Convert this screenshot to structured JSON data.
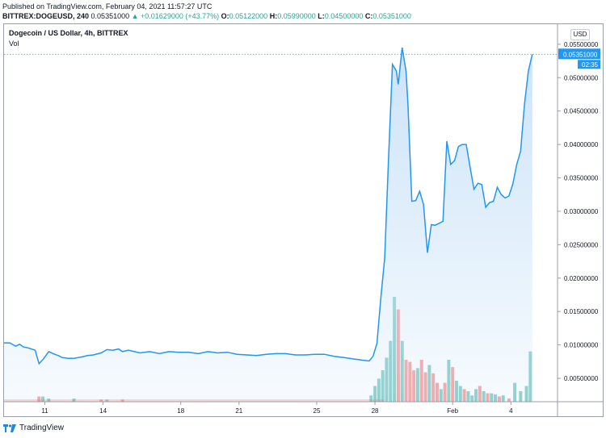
{
  "header": {
    "published": "Published on TradingView.com, February 04, 2021 11:57:27 UTC",
    "symbol": "BITTREX:DOGEUSD, 240",
    "last": "0.05351000",
    "change": "▲ +0.01629000 (+43.77%)",
    "open_label": "O:",
    "open": "0.05122000",
    "high_label": "H:",
    "high": "0.05990000",
    "low_label": "L:",
    "low": "0.04500000",
    "close_label": "C:",
    "close": "0.05351000"
  },
  "legend": {
    "title": "Dogecoin / US Dollar, 4h, BITTREX",
    "volume": "Vol"
  },
  "currency_button": "USD",
  "brand": "TradingView",
  "colors": {
    "line": "#2196f3",
    "fill": "#c9e2f8",
    "vol_up": "#26a69a",
    "vol_down": "#ef5350",
    "label_bg": "#2196f3"
  },
  "chart_data": {
    "type": "area",
    "price_label": "0.05351000",
    "countdown": "02:35",
    "y_ticks": [
      "0.05500000",
      "0.05000000",
      "0.04500000",
      "0.04000000",
      "0.03500000",
      "0.03000000",
      "0.02500000",
      "0.02000000",
      "0.01500000",
      "0.01000000",
      "0.00500000"
    ],
    "y_tick_values": [
      0.055,
      0.05,
      0.045,
      0.04,
      0.035,
      0.03,
      0.025,
      0.02,
      0.015,
      0.01,
      0.005
    ],
    "ylim": [
      0.0015,
      0.058
    ],
    "x_ticks": [
      {
        "label": "11",
        "x": 2.1
      },
      {
        "label": "14",
        "x": 5.1
      },
      {
        "label": "18",
        "x": 9.1
      },
      {
        "label": "21",
        "x": 12.1
      },
      {
        "label": "25",
        "x": 16.1
      },
      {
        "label": "28",
        "x": 19.1
      },
      {
        "label": "Feb",
        "x": 23.1
      },
      {
        "label": "4",
        "x": 26.1
      }
    ],
    "xlim": [
      0,
      28.5
    ],
    "series": [
      {
        "x": [
          0.0,
          0.3,
          0.6,
          0.8,
          1.0,
          1.3,
          1.6,
          1.8,
          2.0,
          2.3,
          2.6,
          2.8,
          3.0,
          3.3,
          3.6,
          4.0,
          4.3,
          4.6,
          5.0,
          5.3,
          5.6,
          5.9,
          6.1,
          6.4,
          7.0,
          7.5,
          8.0,
          8.5,
          9.0,
          9.5,
          10.0,
          10.5,
          11.0,
          11.5,
          12.0,
          12.5,
          13.0,
          13.5,
          14.0,
          14.5,
          15.0,
          15.5,
          16.0,
          16.5,
          17.0,
          17.5,
          18.0,
          18.5,
          18.8,
          19.0,
          19.2,
          19.4,
          19.6,
          19.8,
          20.0,
          20.2,
          20.3,
          20.5,
          20.7,
          20.8,
          21.0,
          21.2,
          21.4,
          21.6,
          21.8,
          22.0,
          22.2,
          22.4,
          22.6,
          22.8,
          23.0,
          23.2,
          23.4,
          23.6,
          23.8,
          24.0,
          24.2,
          24.4,
          24.6,
          24.8,
          25.0,
          25.2,
          25.4,
          25.6,
          25.8,
          26.0,
          26.2,
          26.4
        ],
        "y": [
          0.0103,
          0.0103,
          0.0098,
          0.0101,
          0.0097,
          0.0095,
          0.0092,
          0.0072,
          0.0078,
          0.009,
          0.0086,
          0.0084,
          0.0081,
          0.008,
          0.008,
          0.0082,
          0.0084,
          0.0085,
          0.0088,
          0.0093,
          0.0092,
          0.0094,
          0.009,
          0.0092,
          0.0088,
          0.009,
          0.0087,
          0.009,
          0.0089,
          0.0089,
          0.0087,
          0.009,
          0.0088,
          0.0089,
          0.0086,
          0.0085,
          0.0084,
          0.0086,
          0.0087,
          0.0087,
          0.0085,
          0.0085,
          0.0086,
          0.0086,
          0.0083,
          0.0081,
          0.0079,
          0.0077,
          0.0076,
          0.0083,
          0.0102,
          0.017,
          0.023,
          0.038,
          0.052,
          0.051,
          0.049,
          0.0545,
          0.051,
          0.046,
          0.0315,
          0.0316,
          0.033,
          0.031,
          0.0238,
          0.028,
          0.0279,
          0.0282,
          0.0285,
          0.0405,
          0.037,
          0.0376,
          0.0397,
          0.04,
          0.04,
          0.0366,
          0.0333,
          0.0342,
          0.034,
          0.0306,
          0.0313,
          0.0315,
          0.0336,
          0.0325,
          0.032,
          0.0323,
          0.0341,
          0.037
        ]
      }
    ],
    "series_tail": {
      "x": [
        26.6,
        26.8,
        27.0,
        27.2
      ],
      "y": [
        0.039,
        0.046,
        0.051,
        0.0535
      ]
    },
    "volume": {
      "max": 1.0,
      "bars": [
        {
          "x": 1.8,
          "v": 0.05,
          "up": false
        },
        {
          "x": 2.0,
          "v": 0.05,
          "up": true
        },
        {
          "x": 2.3,
          "v": 0.03,
          "up": true
        },
        {
          "x": 3.6,
          "v": 0.03,
          "up": true
        },
        {
          "x": 5.0,
          "v": 0.02,
          "up": false
        },
        {
          "x": 5.3,
          "v": 0.02,
          "up": true
        },
        {
          "x": 6.1,
          "v": 0.02,
          "up": false
        },
        {
          "x": 18.9,
          "v": 0.06,
          "up": true
        },
        {
          "x": 19.1,
          "v": 0.15,
          "up": true
        },
        {
          "x": 19.3,
          "v": 0.22,
          "up": true
        },
        {
          "x": 19.5,
          "v": 0.3,
          "up": true
        },
        {
          "x": 19.7,
          "v": 0.42,
          "up": true
        },
        {
          "x": 19.9,
          "v": 0.58,
          "up": true
        },
        {
          "x": 20.1,
          "v": 1.0,
          "up": true
        },
        {
          "x": 20.3,
          "v": 0.88,
          "up": false
        },
        {
          "x": 20.5,
          "v": 0.58,
          "up": true
        },
        {
          "x": 20.7,
          "v": 0.4,
          "up": false
        },
        {
          "x": 20.9,
          "v": 0.38,
          "up": false
        },
        {
          "x": 21.1,
          "v": 0.3,
          "up": false
        },
        {
          "x": 21.3,
          "v": 0.32,
          "up": true
        },
        {
          "x": 21.5,
          "v": 0.4,
          "up": false
        },
        {
          "x": 21.7,
          "v": 0.28,
          "up": false
        },
        {
          "x": 21.9,
          "v": 0.35,
          "up": true
        },
        {
          "x": 22.1,
          "v": 0.27,
          "up": false
        },
        {
          "x": 22.3,
          "v": 0.18,
          "up": false
        },
        {
          "x": 22.5,
          "v": 0.12,
          "up": true
        },
        {
          "x": 22.7,
          "v": 0.18,
          "up": false
        },
        {
          "x": 22.9,
          "v": 0.4,
          "up": true
        },
        {
          "x": 23.1,
          "v": 0.33,
          "up": false
        },
        {
          "x": 23.3,
          "v": 0.2,
          "up": true
        },
        {
          "x": 23.5,
          "v": 0.15,
          "up": true
        },
        {
          "x": 23.7,
          "v": 0.12,
          "up": false
        },
        {
          "x": 23.9,
          "v": 0.1,
          "up": true
        },
        {
          "x": 24.1,
          "v": 0.06,
          "up": true
        },
        {
          "x": 24.3,
          "v": 0.12,
          "up": true
        },
        {
          "x": 24.5,
          "v": 0.15,
          "up": false
        },
        {
          "x": 24.7,
          "v": 0.1,
          "up": true
        },
        {
          "x": 24.9,
          "v": 0.08,
          "up": false
        },
        {
          "x": 25.1,
          "v": 0.08,
          "up": true
        },
        {
          "x": 25.3,
          "v": 0.07,
          "up": true
        },
        {
          "x": 25.5,
          "v": 0.05,
          "up": false
        },
        {
          "x": 25.7,
          "v": 0.06,
          "up": true
        },
        {
          "x": 26.0,
          "v": 0.03,
          "up": false
        },
        {
          "x": 26.3,
          "v": 0.18,
          "up": true
        },
        {
          "x": 26.6,
          "v": 0.1,
          "up": true
        },
        {
          "x": 26.9,
          "v": 0.15,
          "up": true
        },
        {
          "x": 27.1,
          "v": 0.48,
          "up": true
        }
      ]
    }
  }
}
